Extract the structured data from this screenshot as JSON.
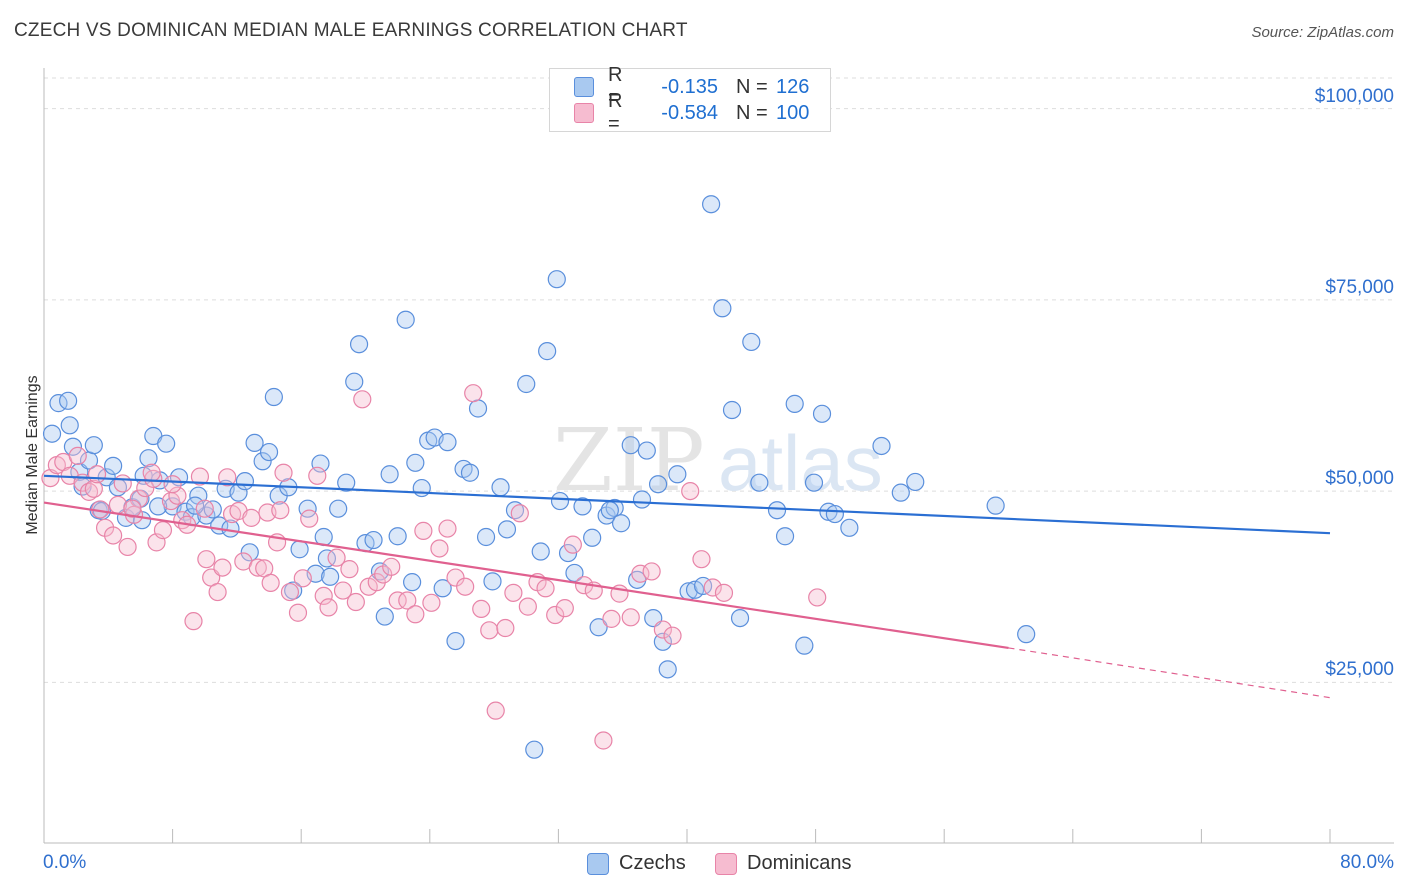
{
  "title": "CZECH VS DOMINICAN MEDIAN MALE EARNINGS CORRELATION CHART",
  "source": "Source: ZipAtlas.com",
  "watermark": "ZIPatlas",
  "legend": {
    "series1": {
      "r_label": "R =",
      "r_value": "-0.135",
      "n_label": "N =",
      "n_value": "126"
    },
    "series2": {
      "r_label": "R =",
      "r_value": "-0.584",
      "n_label": "N =",
      "n_value": "100"
    }
  },
  "colors": {
    "czech_fill": "#a9c9f0",
    "czech_stroke": "#5a8fdc",
    "czech_line": "#2b6fd3",
    "dominican_fill": "#f6bcd0",
    "dominican_stroke": "#e884a8",
    "dominican_line": "#e0608f",
    "grid": "#dddddd",
    "value_text": "#2f6fce"
  },
  "chart_data": {
    "type": "scatter",
    "title": "CZECH VS DOMINICAN MEDIAN MALE EARNINGS CORRELATION CHART",
    "xlabel": "",
    "ylabel": "Median Male Earnings",
    "xlim": [
      0,
      80
    ],
    "ylim": [
      4000,
      104000
    ],
    "x_tick_labels": [
      "0.0%",
      "80.0%"
    ],
    "y_ticks": [
      25000,
      50000,
      75000,
      100000
    ],
    "y_tick_labels": [
      "$25,000",
      "$50,000",
      "$75,000",
      "$100,000"
    ],
    "grid": true,
    "legend_position": "top-center",
    "series": [
      {
        "name": "Czechs",
        "trend": {
          "x0": 0,
          "y0": 52000,
          "x1": 80,
          "y1": 44500
        },
        "points": [
          [
            0.5,
            57500
          ],
          [
            0.9,
            61500
          ],
          [
            1.5,
            61800
          ],
          [
            1.6,
            58600
          ],
          [
            1.8,
            55800
          ],
          [
            2.2,
            52500
          ],
          [
            2.4,
            50600
          ],
          [
            2.8,
            54000
          ],
          [
            3.1,
            56000
          ],
          [
            3.4,
            47500
          ],
          [
            3.9,
            51800
          ],
          [
            4.3,
            53300
          ],
          [
            4.6,
            50500
          ],
          [
            5.1,
            46500
          ],
          [
            5.5,
            47900
          ],
          [
            6.0,
            49000
          ],
          [
            6.2,
            52000
          ],
          [
            6.5,
            54300
          ],
          [
            6.8,
            57200
          ],
          [
            7.2,
            51400
          ],
          [
            7.6,
            56200
          ],
          [
            8.0,
            48000
          ],
          [
            8.4,
            51800
          ],
          [
            8.8,
            47300
          ],
          [
            9.2,
            46600
          ],
          [
            9.6,
            49400
          ],
          [
            10.1,
            46800
          ],
          [
            10.5,
            47600
          ],
          [
            10.9,
            45500
          ],
          [
            11.3,
            50300
          ],
          [
            11.6,
            45100
          ],
          [
            12.1,
            49800
          ],
          [
            12.5,
            51300
          ],
          [
            13.1,
            56300
          ],
          [
            13.6,
            53900
          ],
          [
            14.0,
            55100
          ],
          [
            14.3,
            62300
          ],
          [
            14.6,
            49400
          ],
          [
            15.2,
            50500
          ],
          [
            15.5,
            37000
          ],
          [
            15.9,
            42400
          ],
          [
            16.4,
            47700
          ],
          [
            16.9,
            39200
          ],
          [
            17.2,
            53600
          ],
          [
            17.6,
            41200
          ],
          [
            17.8,
            38800
          ],
          [
            18.3,
            47700
          ],
          [
            18.8,
            51100
          ],
          [
            19.3,
            64300
          ],
          [
            19.6,
            69200
          ],
          [
            20.0,
            43200
          ],
          [
            20.5,
            43600
          ],
          [
            20.9,
            39500
          ],
          [
            21.2,
            33600
          ],
          [
            21.5,
            52200
          ],
          [
            22.0,
            44100
          ],
          [
            22.5,
            72400
          ],
          [
            23.1,
            53700
          ],
          [
            23.5,
            50400
          ],
          [
            23.9,
            56600
          ],
          [
            24.3,
            57000
          ],
          [
            24.8,
            37300
          ],
          [
            25.1,
            56400
          ],
          [
            25.6,
            30400
          ],
          [
            26.1,
            52900
          ],
          [
            26.5,
            52400
          ],
          [
            27.0,
            60800
          ],
          [
            27.5,
            44000
          ],
          [
            27.9,
            38200
          ],
          [
            28.4,
            50500
          ],
          [
            28.8,
            45000
          ],
          [
            29.3,
            47500
          ],
          [
            30.0,
            64000
          ],
          [
            30.5,
            16200
          ],
          [
            30.9,
            42100
          ],
          [
            31.3,
            68300
          ],
          [
            31.9,
            77700
          ],
          [
            32.1,
            48700
          ],
          [
            32.6,
            41900
          ],
          [
            33.0,
            39300
          ],
          [
            33.5,
            48000
          ],
          [
            34.1,
            43900
          ],
          [
            34.5,
            32200
          ],
          [
            35.0,
            46800
          ],
          [
            35.5,
            47800
          ],
          [
            35.9,
            45800
          ],
          [
            36.5,
            56000
          ],
          [
            36.9,
            38400
          ],
          [
            37.2,
            48900
          ],
          [
            37.5,
            55300
          ],
          [
            37.9,
            33400
          ],
          [
            38.2,
            50900
          ],
          [
            38.5,
            30300
          ],
          [
            38.8,
            26700
          ],
          [
            39.4,
            52200
          ],
          [
            40.1,
            36900
          ],
          [
            40.5,
            37100
          ],
          [
            41.0,
            37600
          ],
          [
            41.5,
            87500
          ],
          [
            42.2,
            73900
          ],
          [
            42.8,
            60600
          ],
          [
            43.3,
            33400
          ],
          [
            44.0,
            69500
          ],
          [
            44.5,
            51100
          ],
          [
            45.6,
            47500
          ],
          [
            46.1,
            44100
          ],
          [
            46.7,
            61400
          ],
          [
            47.3,
            29800
          ],
          [
            47.9,
            51100
          ],
          [
            48.4,
            60100
          ],
          [
            48.8,
            47300
          ],
          [
            49.2,
            47000
          ],
          [
            50.1,
            45200
          ],
          [
            52.1,
            55900
          ],
          [
            53.3,
            49800
          ],
          [
            54.2,
            51200
          ],
          [
            59.2,
            48100
          ],
          [
            61.1,
            31300
          ],
          [
            7.1,
            48000
          ],
          [
            6.1,
            46200
          ],
          [
            9.4,
            48100
          ],
          [
            3.6,
            47400
          ],
          [
            12.8,
            42000
          ],
          [
            35.2,
            47500
          ],
          [
            17.4,
            44000
          ],
          [
            22.9,
            38100
          ]
        ]
      },
      {
        "name": "Dominicans",
        "trend": {
          "x0": 0,
          "y0": 48500,
          "x1": 60,
          "y1": 29500,
          "dash_to_x": 80,
          "dash_to_y": 23000
        },
        "points": [
          [
            0.4,
            51700
          ],
          [
            0.8,
            53400
          ],
          [
            1.2,
            53800
          ],
          [
            1.6,
            52000
          ],
          [
            2.1,
            54600
          ],
          [
            2.4,
            51100
          ],
          [
            2.8,
            49900
          ],
          [
            3.1,
            50300
          ],
          [
            3.5,
            47600
          ],
          [
            3.8,
            45200
          ],
          [
            4.3,
            44200
          ],
          [
            4.6,
            48200
          ],
          [
            4.9,
            51000
          ],
          [
            5.2,
            42700
          ],
          [
            5.6,
            46900
          ],
          [
            5.9,
            49000
          ],
          [
            6.3,
            50400
          ],
          [
            6.8,
            51600
          ],
          [
            7.0,
            43300
          ],
          [
            7.4,
            44900
          ],
          [
            7.9,
            48700
          ],
          [
            8.3,
            49400
          ],
          [
            8.6,
            46200
          ],
          [
            8.9,
            45600
          ],
          [
            9.3,
            33000
          ],
          [
            9.7,
            51900
          ],
          [
            10.1,
            41100
          ],
          [
            10.4,
            38700
          ],
          [
            10.8,
            36800
          ],
          [
            11.1,
            40000
          ],
          [
            11.7,
            47000
          ],
          [
            12.1,
            47400
          ],
          [
            12.4,
            40800
          ],
          [
            12.9,
            46500
          ],
          [
            13.3,
            40000
          ],
          [
            13.7,
            39900
          ],
          [
            14.1,
            38000
          ],
          [
            14.5,
            43300
          ],
          [
            14.9,
            52400
          ],
          [
            15.3,
            36800
          ],
          [
            15.8,
            34100
          ],
          [
            16.1,
            38600
          ],
          [
            16.5,
            46400
          ],
          [
            17.0,
            52000
          ],
          [
            17.4,
            36300
          ],
          [
            17.7,
            34800
          ],
          [
            18.2,
            41300
          ],
          [
            18.6,
            37000
          ],
          [
            19.0,
            39800
          ],
          [
            19.4,
            35500
          ],
          [
            19.8,
            62000
          ],
          [
            20.2,
            37500
          ],
          [
            20.7,
            38100
          ],
          [
            21.1,
            39100
          ],
          [
            21.6,
            40100
          ],
          [
            22.0,
            35700
          ],
          [
            22.6,
            35700
          ],
          [
            23.1,
            33900
          ],
          [
            23.6,
            44800
          ],
          [
            24.1,
            35400
          ],
          [
            24.6,
            42500
          ],
          [
            25.1,
            45100
          ],
          [
            25.6,
            38700
          ],
          [
            26.2,
            37500
          ],
          [
            26.7,
            62800
          ],
          [
            27.2,
            34600
          ],
          [
            27.7,
            31800
          ],
          [
            28.1,
            21300
          ],
          [
            28.7,
            32100
          ],
          [
            29.2,
            36700
          ],
          [
            29.6,
            47100
          ],
          [
            30.1,
            34900
          ],
          [
            30.7,
            38100
          ],
          [
            31.2,
            37300
          ],
          [
            31.8,
            33800
          ],
          [
            32.4,
            34700
          ],
          [
            32.9,
            43000
          ],
          [
            33.6,
            37700
          ],
          [
            34.2,
            37000
          ],
          [
            34.8,
            17400
          ],
          [
            35.3,
            33300
          ],
          [
            35.8,
            36600
          ],
          [
            36.5,
            33500
          ],
          [
            37.1,
            39200
          ],
          [
            37.8,
            39500
          ],
          [
            38.5,
            31900
          ],
          [
            39.1,
            31100
          ],
          [
            40.2,
            50000
          ],
          [
            40.9,
            41100
          ],
          [
            41.6,
            37400
          ],
          [
            42.3,
            36700
          ],
          [
            48.1,
            36100
          ],
          [
            13.9,
            47200
          ],
          [
            11.4,
            51800
          ],
          [
            3.3,
            52200
          ],
          [
            6.7,
            52400
          ],
          [
            8.0,
            50900
          ],
          [
            14.7,
            47500
          ],
          [
            5.5,
            47700
          ],
          [
            10.0,
            47700
          ]
        ]
      }
    ]
  }
}
